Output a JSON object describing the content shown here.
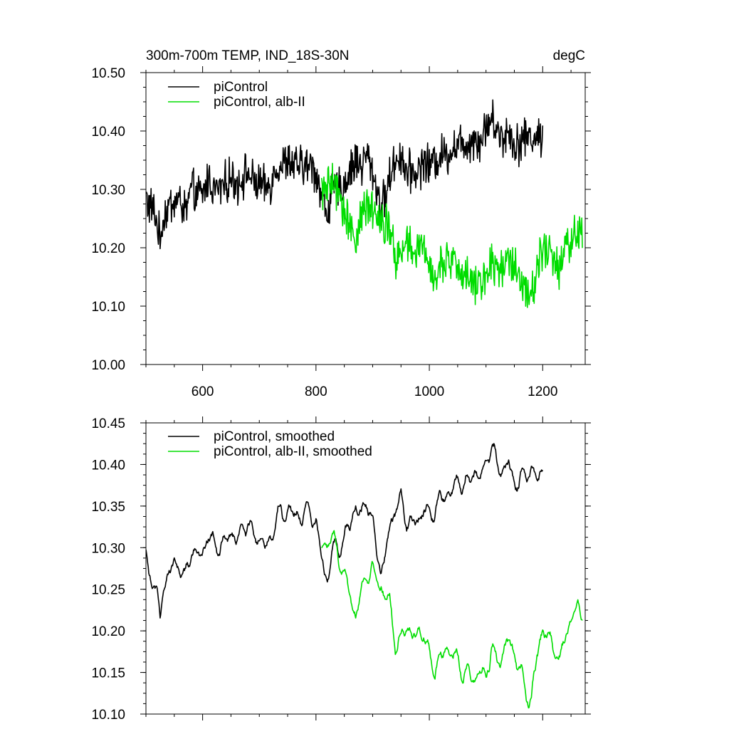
{
  "figure": {
    "title_left": "300m-700m TEMP, IND_18S-30N",
    "title_right": "degC"
  },
  "chart_data": [
    {
      "type": "line",
      "title": "300m-700m TEMP, IND_18S-30N",
      "units": "degC",
      "xlim": [
        500,
        1275
      ],
      "ylim": [
        10.0,
        10.5
      ],
      "xticks": [
        600,
        800,
        1000,
        1200
      ],
      "xtick_labels": [
        "600",
        "800",
        "1000",
        "1200"
      ],
      "yticks": [
        10.0,
        10.1,
        10.2,
        10.3,
        10.4,
        10.5
      ],
      "ytick_labels": [
        "10.00",
        "10.10",
        "10.20",
        "10.30",
        "10.40",
        "10.50"
      ],
      "legend_position": "top-left",
      "series": [
        {
          "name": "piControl",
          "color": "#000000",
          "noisy": true,
          "x": [
            500,
            505,
            510,
            515,
            520,
            525,
            530,
            540,
            550,
            560,
            570,
            580,
            590,
            600,
            610,
            620,
            630,
            640,
            650,
            660,
            670,
            680,
            690,
            700,
            710,
            720,
            730,
            740,
            750,
            760,
            770,
            780,
            790,
            800,
            805,
            810,
            815,
            820,
            825,
            830,
            840,
            850,
            860,
            870,
            880,
            890,
            900,
            905,
            910,
            915,
            920,
            930,
            940,
            950,
            960,
            970,
            980,
            990,
            1000,
            1010,
            1020,
            1030,
            1040,
            1050,
            1060,
            1070,
            1080,
            1090,
            1100,
            1110,
            1120,
            1130,
            1140,
            1150,
            1160,
            1170,
            1180,
            1190,
            1200
          ],
          "y": [
            10.29,
            10.27,
            10.27,
            10.26,
            10.24,
            10.21,
            10.25,
            10.27,
            10.28,
            10.28,
            10.26,
            10.3,
            10.29,
            10.29,
            10.32,
            10.3,
            10.3,
            10.31,
            10.32,
            10.31,
            10.32,
            10.33,
            10.31,
            10.31,
            10.3,
            10.31,
            10.34,
            10.34,
            10.35,
            10.34,
            10.34,
            10.34,
            10.34,
            10.33,
            10.31,
            10.29,
            10.27,
            10.26,
            10.28,
            10.3,
            10.3,
            10.31,
            10.33,
            10.35,
            10.34,
            10.36,
            10.33,
            10.31,
            10.29,
            10.27,
            10.28,
            10.32,
            10.35,
            10.36,
            10.33,
            10.33,
            10.33,
            10.35,
            10.34,
            10.35,
            10.36,
            10.36,
            10.37,
            10.38,
            10.38,
            10.38,
            10.39,
            10.38,
            10.41,
            10.42,
            10.4,
            10.39,
            10.4,
            10.38,
            10.38,
            10.39,
            10.39,
            10.39,
            10.39
          ]
        },
        {
          "name": "piControl, alb-II",
          "color": "#00dd00",
          "noisy": true,
          "x": [
            810,
            815,
            820,
            825,
            830,
            840,
            850,
            860,
            870,
            880,
            890,
            900,
            910,
            920,
            930,
            940,
            950,
            960,
            970,
            980,
            990,
            1000,
            1010,
            1020,
            1030,
            1040,
            1050,
            1060,
            1070,
            1080,
            1090,
            1100,
            1110,
            1120,
            1130,
            1140,
            1150,
            1160,
            1165,
            1170,
            1175,
            1180,
            1190,
            1200,
            1210,
            1220,
            1230,
            1240,
            1250,
            1260,
            1270
          ],
          "y": [
            10.3,
            10.3,
            10.3,
            10.31,
            10.31,
            10.29,
            10.26,
            10.24,
            10.22,
            10.25,
            10.27,
            10.27,
            10.26,
            10.24,
            10.24,
            10.18,
            10.19,
            10.21,
            10.19,
            10.2,
            10.2,
            10.17,
            10.15,
            10.17,
            10.18,
            10.17,
            10.17,
            10.15,
            10.15,
            10.14,
            10.15,
            10.15,
            10.18,
            10.16,
            10.17,
            10.19,
            10.17,
            10.15,
            10.14,
            10.13,
            10.12,
            10.12,
            10.17,
            10.2,
            10.19,
            10.18,
            10.16,
            10.2,
            10.21,
            10.23,
            10.22
          ]
        }
      ]
    },
    {
      "type": "line",
      "xlim": [
        500,
        1275
      ],
      "ylim": [
        10.1,
        10.45
      ],
      "xticks": [
        600,
        800,
        1000,
        1200
      ],
      "xtick_labels": [
        "",
        "",
        "",
        ""
      ],
      "yticks": [
        10.1,
        10.15,
        10.2,
        10.25,
        10.3,
        10.35,
        10.4,
        10.45
      ],
      "ytick_labels": [
        "10.10",
        "10.15",
        "10.20",
        "10.25",
        "10.30",
        "10.35",
        "10.40",
        "10.45"
      ],
      "legend_position": "top-left",
      "series": [
        {
          "name": "piControl, smoothed",
          "color": "#000000",
          "noisy": false,
          "x": [
            500,
            505,
            510,
            515,
            520,
            525,
            530,
            540,
            550,
            560,
            570,
            580,
            590,
            600,
            610,
            620,
            630,
            640,
            650,
            660,
            670,
            680,
            690,
            700,
            710,
            720,
            730,
            740,
            750,
            760,
            770,
            780,
            790,
            800,
            805,
            810,
            815,
            820,
            825,
            830,
            840,
            850,
            860,
            870,
            880,
            890,
            900,
            905,
            910,
            915,
            920,
            930,
            940,
            950,
            960,
            970,
            980,
            990,
            1000,
            1010,
            1020,
            1030,
            1040,
            1050,
            1060,
            1070,
            1080,
            1090,
            1100,
            1110,
            1120,
            1130,
            1140,
            1150,
            1160,
            1170,
            1180,
            1190,
            1200
          ],
          "y": [
            10.29,
            10.27,
            10.27,
            10.26,
            10.24,
            10.21,
            10.25,
            10.27,
            10.28,
            10.28,
            10.26,
            10.3,
            10.29,
            10.29,
            10.32,
            10.3,
            10.3,
            10.31,
            10.32,
            10.31,
            10.32,
            10.33,
            10.31,
            10.31,
            10.3,
            10.31,
            10.34,
            10.34,
            10.35,
            10.34,
            10.34,
            10.34,
            10.34,
            10.33,
            10.31,
            10.29,
            10.27,
            10.26,
            10.28,
            10.3,
            10.3,
            10.31,
            10.33,
            10.35,
            10.34,
            10.36,
            10.33,
            10.31,
            10.29,
            10.27,
            10.28,
            10.32,
            10.35,
            10.36,
            10.33,
            10.33,
            10.33,
            10.35,
            10.34,
            10.35,
            10.36,
            10.36,
            10.37,
            10.38,
            10.38,
            10.38,
            10.39,
            10.38,
            10.41,
            10.42,
            10.4,
            10.39,
            10.4,
            10.38,
            10.38,
            10.39,
            10.39,
            10.39,
            10.39
          ]
        },
        {
          "name": "piControl, alb-II, smoothed",
          "color": "#00dd00",
          "noisy": false,
          "x": [
            810,
            815,
            820,
            825,
            830,
            840,
            850,
            860,
            870,
            880,
            890,
            900,
            910,
            920,
            930,
            940,
            950,
            960,
            970,
            980,
            990,
            1000,
            1010,
            1020,
            1030,
            1040,
            1050,
            1060,
            1070,
            1080,
            1090,
            1100,
            1110,
            1120,
            1130,
            1140,
            1150,
            1160,
            1165,
            1170,
            1175,
            1180,
            1190,
            1200,
            1210,
            1220,
            1230,
            1240,
            1250,
            1260,
            1270
          ],
          "y": [
            10.3,
            10.3,
            10.3,
            10.31,
            10.31,
            10.29,
            10.26,
            10.24,
            10.22,
            10.25,
            10.27,
            10.27,
            10.26,
            10.24,
            10.24,
            10.18,
            10.19,
            10.21,
            10.19,
            10.2,
            10.2,
            10.17,
            10.15,
            10.17,
            10.18,
            10.17,
            10.17,
            10.15,
            10.15,
            10.14,
            10.15,
            10.15,
            10.18,
            10.16,
            10.17,
            10.19,
            10.17,
            10.15,
            10.14,
            10.13,
            10.12,
            10.12,
            10.17,
            10.2,
            10.19,
            10.18,
            10.16,
            10.2,
            10.21,
            10.23,
            10.22
          ]
        }
      ]
    }
  ]
}
